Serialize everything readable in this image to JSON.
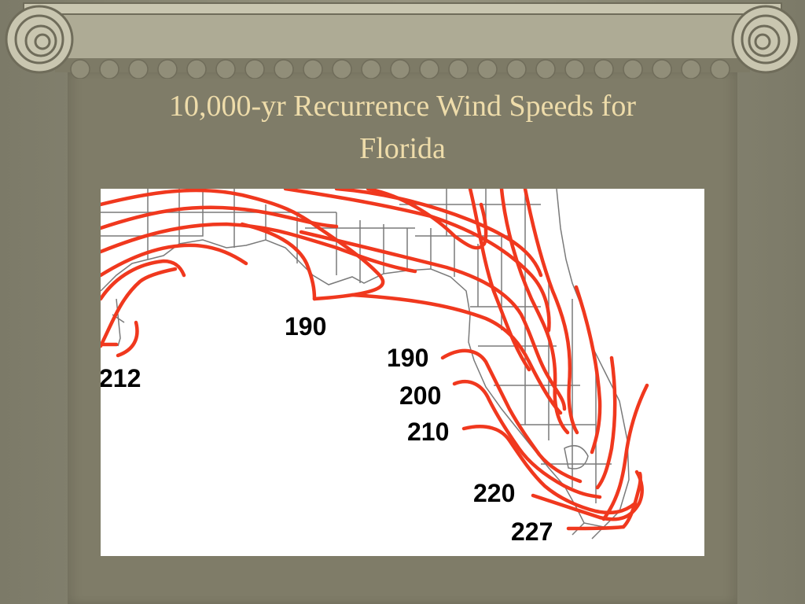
{
  "slide": {
    "title_line1": "10,000-yr Recurrence Wind Speeds for",
    "title_line2": "Florida"
  },
  "map": {
    "contour_color": "#f0381e",
    "border_color": "#7a7a7a",
    "labels": [
      {
        "id": "190-panhandle",
        "text": "190"
      },
      {
        "id": "212",
        "text": "212"
      },
      {
        "id": "190",
        "text": "190"
      },
      {
        "id": "200",
        "text": "200"
      },
      {
        "id": "210",
        "text": "210"
      },
      {
        "id": "220",
        "text": "220"
      },
      {
        "id": "227",
        "text": "227"
      }
    ]
  }
}
